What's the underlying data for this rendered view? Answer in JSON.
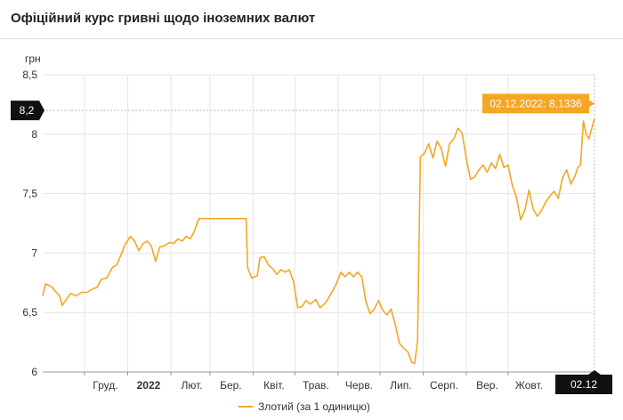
{
  "header": {
    "title": "Офіційний курс гривні щодо іноземних валют"
  },
  "colors": {
    "line": "#f5a623",
    "badge": "#111111",
    "grid": "#e6e6e6",
    "crosshair": "#bbbbbb"
  },
  "chart_data": {
    "type": "line",
    "title": "",
    "ylabel": "грн",
    "xlabel": "",
    "ylim": [
      6,
      8.5
    ],
    "yticks": [
      6,
      6.5,
      7,
      7.5,
      8,
      8.5
    ],
    "ytick_labels": [
      "6",
      "6,5",
      "7",
      "7,5",
      "8",
      "8,5"
    ],
    "xlim": [
      "2021-11-01",
      "2022-12-02"
    ],
    "xticks": [
      {
        "date": "2021-12-01",
        "label": "Груд.",
        "bold": false
      },
      {
        "date": "2022-01-01",
        "label": "2022",
        "bold": true
      },
      {
        "date": "2022-02-01",
        "label": "Лют.",
        "bold": false
      },
      {
        "date": "2022-03-01",
        "label": "Бер.",
        "bold": false
      },
      {
        "date": "2022-04-01",
        "label": "Квіт.",
        "bold": false
      },
      {
        "date": "2022-05-01",
        "label": "Трав.",
        "bold": false
      },
      {
        "date": "2022-06-01",
        "label": "Черв.",
        "bold": false
      },
      {
        "date": "2022-07-01",
        "label": "Лип.",
        "bold": false
      },
      {
        "date": "2022-08-01",
        "label": "Серп.",
        "bold": false
      },
      {
        "date": "2022-09-01",
        "label": "Вер.",
        "bold": false
      },
      {
        "date": "2022-10-01",
        "label": "Жовт.",
        "bold": false
      }
    ],
    "grid": true,
    "legend": "bottom-center",
    "crosshair": {
      "y_label": "8,2",
      "y_value": 8.2,
      "x_label": "02.12",
      "x_date": "2022-12-02"
    },
    "tooltip": {
      "text": "02.12.2022: 8,1336"
    },
    "series": [
      {
        "name": "Злотий (за 1 одиницю)",
        "points": [
          [
            "2021-11-01",
            6.64
          ],
          [
            "2021-11-03",
            6.74
          ],
          [
            "2021-11-07",
            6.72
          ],
          [
            "2021-11-10",
            6.68
          ],
          [
            "2021-11-13",
            6.64
          ],
          [
            "2021-11-15",
            6.56
          ],
          [
            "2021-11-18",
            6.61
          ],
          [
            "2021-11-21",
            6.66
          ],
          [
            "2021-11-25",
            6.64
          ],
          [
            "2021-11-29",
            6.67
          ],
          [
            "2021-12-03",
            6.67
          ],
          [
            "2021-12-07",
            6.7
          ],
          [
            "2021-12-10",
            6.71
          ],
          [
            "2021-12-13",
            6.78
          ],
          [
            "2021-12-17",
            6.79
          ],
          [
            "2021-12-21",
            6.88
          ],
          [
            "2021-12-24",
            6.9
          ],
          [
            "2021-12-27",
            6.98
          ],
          [
            "2021-12-30",
            7.07
          ],
          [
            "2022-01-03",
            7.14
          ],
          [
            "2022-01-06",
            7.1
          ],
          [
            "2022-01-09",
            7.02
          ],
          [
            "2022-01-12",
            7.08
          ],
          [
            "2022-01-15",
            7.1
          ],
          [
            "2022-01-18",
            7.06
          ],
          [
            "2022-01-21",
            6.93
          ],
          [
            "2022-01-24",
            7.05
          ],
          [
            "2022-01-27",
            7.06
          ],
          [
            "2022-01-31",
            7.09
          ],
          [
            "2022-02-03",
            7.08
          ],
          [
            "2022-02-06",
            7.12
          ],
          [
            "2022-02-09",
            7.1
          ],
          [
            "2022-02-12",
            7.14
          ],
          [
            "2022-02-15",
            7.12
          ],
          [
            "2022-02-18",
            7.19
          ],
          [
            "2022-02-21",
            7.29
          ],
          [
            "2022-03-04",
            7.29
          ],
          [
            "2022-03-15",
            7.29
          ],
          [
            "2022-03-27",
            7.29
          ],
          [
            "2022-03-28",
            6.88
          ],
          [
            "2022-03-31",
            6.79
          ],
          [
            "2022-04-04",
            6.81
          ],
          [
            "2022-04-06",
            6.96
          ],
          [
            "2022-04-09",
            6.97
          ],
          [
            "2022-04-12",
            6.9
          ],
          [
            "2022-04-15",
            6.87
          ],
          [
            "2022-04-18",
            6.82
          ],
          [
            "2022-04-21",
            6.86
          ],
          [
            "2022-04-24",
            6.84
          ],
          [
            "2022-04-27",
            6.86
          ],
          [
            "2022-04-30",
            6.76
          ],
          [
            "2022-05-03",
            6.54
          ],
          [
            "2022-05-06",
            6.55
          ],
          [
            "2022-05-09",
            6.6
          ],
          [
            "2022-05-12",
            6.57
          ],
          [
            "2022-05-16",
            6.61
          ],
          [
            "2022-05-19",
            6.54
          ],
          [
            "2022-05-22",
            6.57
          ],
          [
            "2022-05-25",
            6.62
          ],
          [
            "2022-05-28",
            6.68
          ],
          [
            "2022-05-31",
            6.75
          ],
          [
            "2022-06-03",
            6.84
          ],
          [
            "2022-06-06",
            6.8
          ],
          [
            "2022-06-09",
            6.84
          ],
          [
            "2022-06-12",
            6.8
          ],
          [
            "2022-06-15",
            6.84
          ],
          [
            "2022-06-18",
            6.8
          ],
          [
            "2022-06-21",
            6.59
          ],
          [
            "2022-06-24",
            6.49
          ],
          [
            "2022-06-27",
            6.53
          ],
          [
            "2022-06-30",
            6.6
          ],
          [
            "2022-07-03",
            6.52
          ],
          [
            "2022-07-06",
            6.48
          ],
          [
            "2022-07-09",
            6.53
          ],
          [
            "2022-07-12",
            6.4
          ],
          [
            "2022-07-15",
            6.24
          ],
          [
            "2022-07-18",
            6.2
          ],
          [
            "2022-07-21",
            6.17
          ],
          [
            "2022-07-24",
            6.08
          ],
          [
            "2022-07-26",
            6.07
          ],
          [
            "2022-07-28",
            6.27
          ],
          [
            "2022-07-30",
            7.81
          ],
          [
            "2022-08-02",
            7.84
          ],
          [
            "2022-08-05",
            7.92
          ],
          [
            "2022-08-08",
            7.8
          ],
          [
            "2022-08-11",
            7.94
          ],
          [
            "2022-08-14",
            7.88
          ],
          [
            "2022-08-17",
            7.73
          ],
          [
            "2022-08-20",
            7.92
          ],
          [
            "2022-08-23",
            7.96
          ],
          [
            "2022-08-26",
            8.05
          ],
          [
            "2022-08-29",
            8.01
          ],
          [
            "2022-09-01",
            7.79
          ],
          [
            "2022-09-04",
            7.62
          ],
          [
            "2022-09-07",
            7.64
          ],
          [
            "2022-09-10",
            7.7
          ],
          [
            "2022-09-13",
            7.74
          ],
          [
            "2022-09-16",
            7.68
          ],
          [
            "2022-09-19",
            7.76
          ],
          [
            "2022-09-22",
            7.71
          ],
          [
            "2022-09-25",
            7.83
          ],
          [
            "2022-09-28",
            7.72
          ],
          [
            "2022-10-01",
            7.74
          ],
          [
            "2022-10-04",
            7.57
          ],
          [
            "2022-10-07",
            7.47
          ],
          [
            "2022-10-10",
            7.28
          ],
          [
            "2022-10-13",
            7.36
          ],
          [
            "2022-10-16",
            7.53
          ],
          [
            "2022-10-19",
            7.37
          ],
          [
            "2022-10-22",
            7.31
          ],
          [
            "2022-10-25",
            7.36
          ],
          [
            "2022-10-28",
            7.43
          ],
          [
            "2022-10-31",
            7.48
          ],
          [
            "2022-11-03",
            7.52
          ],
          [
            "2022-11-06",
            7.46
          ],
          [
            "2022-11-09",
            7.63
          ],
          [
            "2022-11-12",
            7.7
          ],
          [
            "2022-11-15",
            7.58
          ],
          [
            "2022-11-18",
            7.65
          ],
          [
            "2022-11-20",
            7.72
          ],
          [
            "2022-11-22",
            7.74
          ],
          [
            "2022-11-24",
            8.11
          ],
          [
            "2022-11-26",
            8.0
          ],
          [
            "2022-11-28",
            7.96
          ],
          [
            "2022-11-30",
            8.05
          ],
          [
            "2022-12-02",
            8.13
          ]
        ]
      }
    ]
  }
}
